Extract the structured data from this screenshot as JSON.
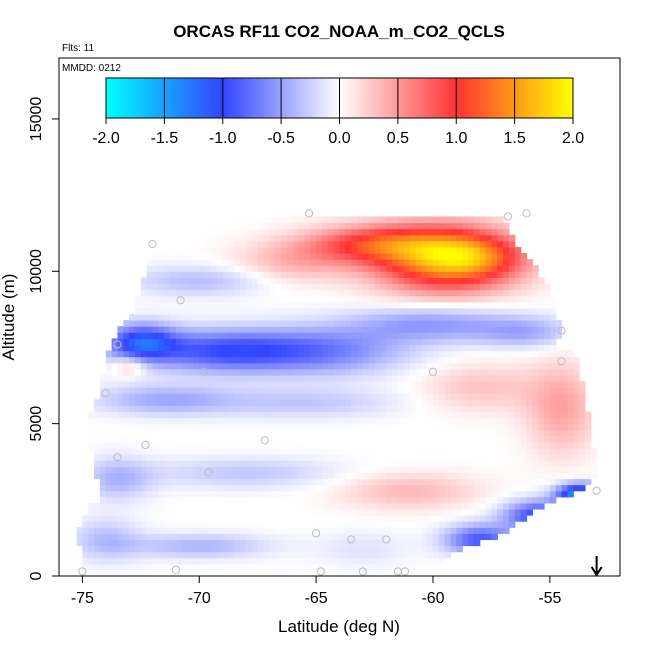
{
  "chart_data": {
    "type": "heatmap",
    "title": "ORCAS RF11 CO2_NOAA_m_CO2_QCLS",
    "subtitle_flights": "Flts: 11",
    "subtitle_date": "MMDD: 0212",
    "xlabel": "Latitude (deg N)",
    "ylabel": "Altitude (m)",
    "xlim": [
      -76,
      -52
    ],
    "ylim": [
      0,
      17000
    ],
    "x_ticks": [
      -75,
      -70,
      -65,
      -60,
      -55
    ],
    "x_tick_labels": [
      "-75",
      "-70",
      "-65",
      "-60",
      "-55"
    ],
    "y_ticks": [
      0,
      5000,
      10000,
      15000
    ],
    "y_tick_labels": [
      "0",
      "5000",
      "10000",
      "15000"
    ],
    "colorbar": {
      "range": [
        -2.0,
        2.0
      ],
      "ticks": [
        -2.0,
        -1.5,
        -1.0,
        -0.5,
        0.0,
        0.5,
        1.0,
        1.5,
        2.0
      ],
      "tick_labels": [
        "-2.0",
        "-1.5",
        "-1.0",
        "-0.5",
        "0.0",
        "0.5",
        "1.0",
        "1.5",
        "2.0"
      ],
      "colors": {
        "neg_max": "#00ffff",
        "neg_mid": "#3344ff",
        "zero": "#ffffff",
        "pos_mid": "#ff3333",
        "pos_max": "#ffff00"
      }
    },
    "domain_outline": [
      [
        -75.0,
        0
      ],
      [
        -75.2,
        1500
      ],
      [
        -74.8,
        2200
      ],
      [
        -74.2,
        2600
      ],
      [
        -74.5,
        3500
      ],
      [
        -74.8,
        5000
      ],
      [
        -74.3,
        6000
      ],
      [
        -73.8,
        7700
      ],
      [
        -72.8,
        8700
      ],
      [
        -72.0,
        10800
      ],
      [
        -71.8,
        11200
      ],
      [
        -67.5,
        11900
      ],
      [
        -61.5,
        11900
      ],
      [
        -57.0,
        11900
      ],
      [
        -56.5,
        11000
      ],
      [
        -55.0,
        9500
      ],
      [
        -54.5,
        8100
      ],
      [
        -54.7,
        7500
      ],
      [
        -53.8,
        7200
      ],
      [
        -53.5,
        6000
      ],
      [
        -53.0,
        3700
      ],
      [
        -53.2,
        3000
      ],
      [
        -55.5,
        2200
      ],
      [
        -57.0,
        1400
      ],
      [
        -59.0,
        800
      ],
      [
        -60.6,
        0
      ]
    ],
    "anomaly_features": [
      {
        "lat": -59.5,
        "alt": 10400,
        "value": 1.4,
        "r_lat": 3.0,
        "r_alt": 1100
      },
      {
        "lat": -58.2,
        "alt": 10500,
        "value": 0.6,
        "r_lat": 2.2,
        "r_alt": 700
      },
      {
        "lat": -62.5,
        "alt": 10900,
        "value": 0.9,
        "r_lat": 3.0,
        "r_alt": 600
      },
      {
        "lat": -66.0,
        "alt": 10300,
        "value": 0.35,
        "r_lat": 2.5,
        "r_alt": 700
      },
      {
        "lat": -72.5,
        "alt": 7700,
        "value": -1.0,
        "r_lat": 1.5,
        "r_alt": 600
      },
      {
        "lat": -69.0,
        "alt": 7400,
        "value": -0.9,
        "r_lat": 3.5,
        "r_alt": 700
      },
      {
        "lat": -64.5,
        "alt": 7400,
        "value": -0.6,
        "r_lat": 3.5,
        "r_alt": 800
      },
      {
        "lat": -60.0,
        "alt": 8300,
        "value": -0.55,
        "r_lat": 3.5,
        "r_alt": 600
      },
      {
        "lat": -56.0,
        "alt": 8000,
        "value": -0.4,
        "r_lat": 2.0,
        "r_alt": 500
      },
      {
        "lat": -70.0,
        "alt": 9700,
        "value": -0.35,
        "r_lat": 3.0,
        "r_alt": 500
      },
      {
        "lat": -71.5,
        "alt": 5800,
        "value": -0.45,
        "r_lat": 3.0,
        "r_alt": 500
      },
      {
        "lat": -65.5,
        "alt": 5700,
        "value": -0.3,
        "r_lat": 4.0,
        "r_alt": 500
      },
      {
        "lat": -73.0,
        "alt": 6900,
        "value": 0.4,
        "r_lat": 0.7,
        "r_alt": 300
      },
      {
        "lat": -54.5,
        "alt": 5500,
        "value": 0.45,
        "r_lat": 1.5,
        "r_alt": 1500
      },
      {
        "lat": -58.0,
        "alt": 6200,
        "value": 0.3,
        "r_lat": 2.5,
        "r_alt": 800
      },
      {
        "lat": -73.5,
        "alt": 3200,
        "value": -0.4,
        "r_lat": 1.5,
        "r_alt": 700
      },
      {
        "lat": -68.0,
        "alt": 3400,
        "value": -0.3,
        "r_lat": 4.0,
        "r_alt": 500
      },
      {
        "lat": -61.0,
        "alt": 2800,
        "value": 0.35,
        "r_lat": 3.0,
        "r_alt": 600
      },
      {
        "lat": -55.5,
        "alt": 2000,
        "value": -1.0,
        "r_lat": 1.5,
        "r_alt": 500
      },
      {
        "lat": -53.7,
        "alt": 2700,
        "value": -1.5,
        "r_lat": 1.0,
        "r_alt": 350
      },
      {
        "lat": -58.0,
        "alt": 1200,
        "value": -0.9,
        "r_lat": 1.5,
        "r_alt": 500
      },
      {
        "lat": -70.0,
        "alt": 1000,
        "value": -0.4,
        "r_lat": 3.0,
        "r_alt": 400
      },
      {
        "lat": -63.0,
        "alt": 900,
        "value": -0.15,
        "r_lat": 2.0,
        "r_alt": 600
      },
      {
        "lat": -74.0,
        "alt": 1200,
        "value": -0.35,
        "r_lat": 1.5,
        "r_alt": 700
      }
    ],
    "sample_points": [
      [
        -75.0,
        150
      ],
      [
        -71.0,
        200
      ],
      [
        -65.0,
        1400
      ],
      [
        -64.8,
        150
      ],
      [
        -63.5,
        1200
      ],
      [
        -63.0,
        150
      ],
      [
        -62.0,
        1200
      ],
      [
        -61.5,
        150
      ],
      [
        -61.2,
        150
      ],
      [
        -73.5,
        3900
      ],
      [
        -72.3,
        4300
      ],
      [
        -67.2,
        4450
      ],
      [
        -69.6,
        3400
      ],
      [
        -74.0,
        6000
      ],
      [
        -73.5,
        7600
      ],
      [
        -69.8,
        6700
      ],
      [
        -60.0,
        6700
      ],
      [
        -54.5,
        7050
      ],
      [
        -70.8,
        9050
      ],
      [
        -72.0,
        10900
      ],
      [
        -65.3,
        11900
      ],
      [
        -56.8,
        11800
      ],
      [
        -56.0,
        11900
      ],
      [
        -54.5,
        8050
      ],
      [
        -53.0,
        2800
      ]
    ],
    "marker_arrow_lat": -53.0
  }
}
